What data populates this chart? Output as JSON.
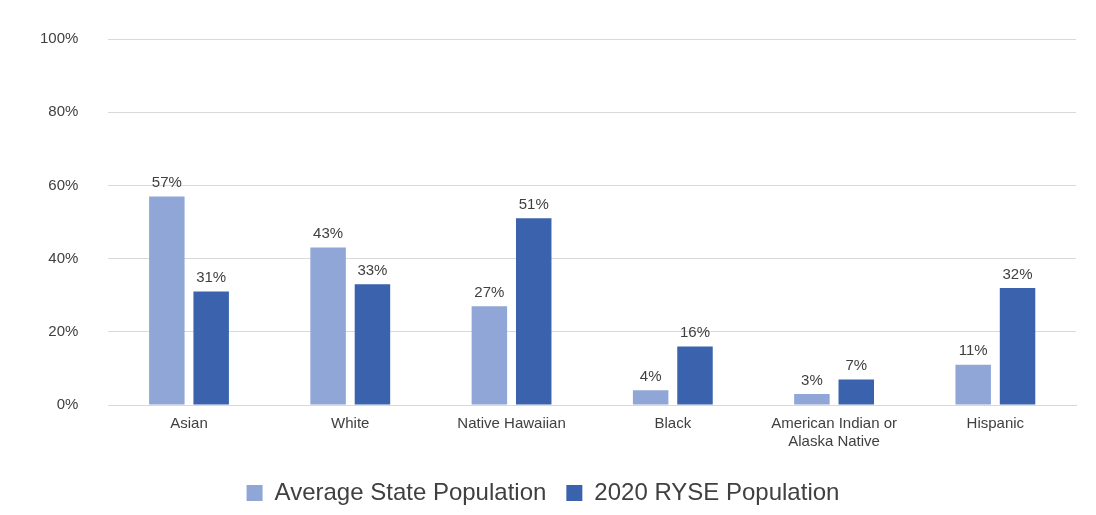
{
  "chart_data": {
    "type": "bar",
    "categories": [
      "Asian",
      "White",
      "Native Hawaiian",
      "Black",
      "American Indian or Alaska Native",
      "Hispanic"
    ],
    "series": [
      {
        "name": "Average State Population",
        "color": "#8fa6d6",
        "values": [
          57,
          43,
          27,
          4,
          3,
          11
        ],
        "value_labels": [
          "57%",
          "43%",
          "27%",
          "4%",
          "3%",
          "11%"
        ]
      },
      {
        "name": "2020 RYSE Population",
        "color": "#3a62ad",
        "values": [
          31,
          33,
          51,
          16,
          7,
          32
        ],
        "value_labels": [
          "31%",
          "33%",
          "51%",
          "16%",
          "7%",
          "32%"
        ]
      }
    ],
    "ylim": [
      0,
      100
    ],
    "yticks": [
      {
        "value": 0,
        "label": "0%"
      },
      {
        "value": 20,
        "label": "20%"
      },
      {
        "value": 40,
        "label": "40%"
      },
      {
        "value": 60,
        "label": "60%"
      },
      {
        "value": 80,
        "label": "80%"
      },
      {
        "value": 100,
        "label": "100%"
      }
    ],
    "grid": "y",
    "legend": "bottom"
  }
}
